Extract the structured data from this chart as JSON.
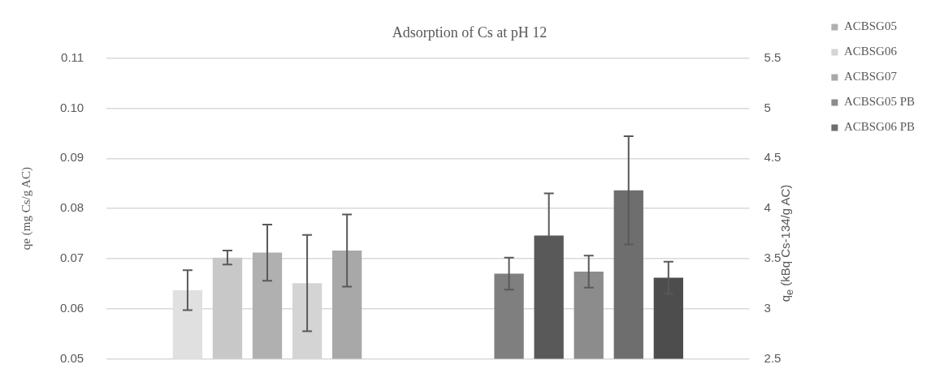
{
  "chart_data": {
    "type": "bar",
    "title": "Adsorption of Cs at pH 12",
    "ylabel": "qe (mg Cs/g AC)",
    "y2label": "q$_{e}$ (kBq Cs-134/g AC)",
    "categories": [
      null,
      null
    ],
    "ylim": [
      0.05,
      0.11
    ],
    "yticks": [
      {
        "value": 0.05,
        "label": "0.05"
      },
      {
        "value": 0.06,
        "label": "0.06"
      },
      {
        "value": 0.07,
        "label": "0.07"
      },
      {
        "value": 0.08,
        "label": "0.08"
      },
      {
        "value": 0.09,
        "label": "0.09"
      },
      {
        "value": 0.1,
        "label": "0.10"
      },
      {
        "value": 0.11,
        "label": "0.11"
      }
    ],
    "y2lim": [
      2.5,
      5.5
    ],
    "y2ticks": [
      2.5,
      3,
      3.5,
      4,
      4.5,
      5,
      5.5
    ],
    "grid": "y",
    "legend": "right",
    "series": [
      {
        "color": "#e0e0e0",
        "values": [
          0.0637,
          null
        ],
        "errors": [
          0.004,
          null
        ]
      },
      {
        "color": "#c8c8c8",
        "values": [
          0.0702,
          null
        ],
        "errors": [
          0.0014,
          null
        ]
      },
      {
        "name": "ACBSG05",
        "color": "#b0b0b0",
        "values": [
          0.0712,
          null
        ],
        "errors": [
          0.0056,
          null
        ]
      },
      {
        "name": "ACBSG06",
        "color": "#d4d4d4",
        "values": [
          0.0651,
          null
        ],
        "errors": [
          0.0096,
          null
        ]
      },
      {
        "name": "ACBSG07",
        "color": "#a8a8a8",
        "values": [
          0.0716,
          null
        ],
        "errors": [
          0.0072,
          null
        ]
      },
      {
        "color": "#7f7f7f",
        "axis": "y2",
        "values": [
          null,
          3.35
        ],
        "errors": [
          null,
          0.16
        ]
      },
      {
        "color": "#595959",
        "axis": "y2",
        "values": [
          null,
          3.73
        ],
        "errors": [
          null,
          0.42
        ]
      },
      {
        "name": "ACBSG05 PB",
        "color": "#8c8c8c",
        "axis": "y2",
        "values": [
          null,
          3.37
        ],
        "errors": [
          null,
          0.16
        ]
      },
      {
        "name": "ACBSG06 PB",
        "color": "#6e6e6e",
        "axis": "y2",
        "values": [
          null,
          4.18
        ],
        "errors": [
          null,
          0.54
        ]
      },
      {
        "color": "#4d4d4d",
        "axis": "y2",
        "values": [
          null,
          3.31
        ],
        "errors": [
          null,
          0.16
        ]
      }
    ]
  }
}
